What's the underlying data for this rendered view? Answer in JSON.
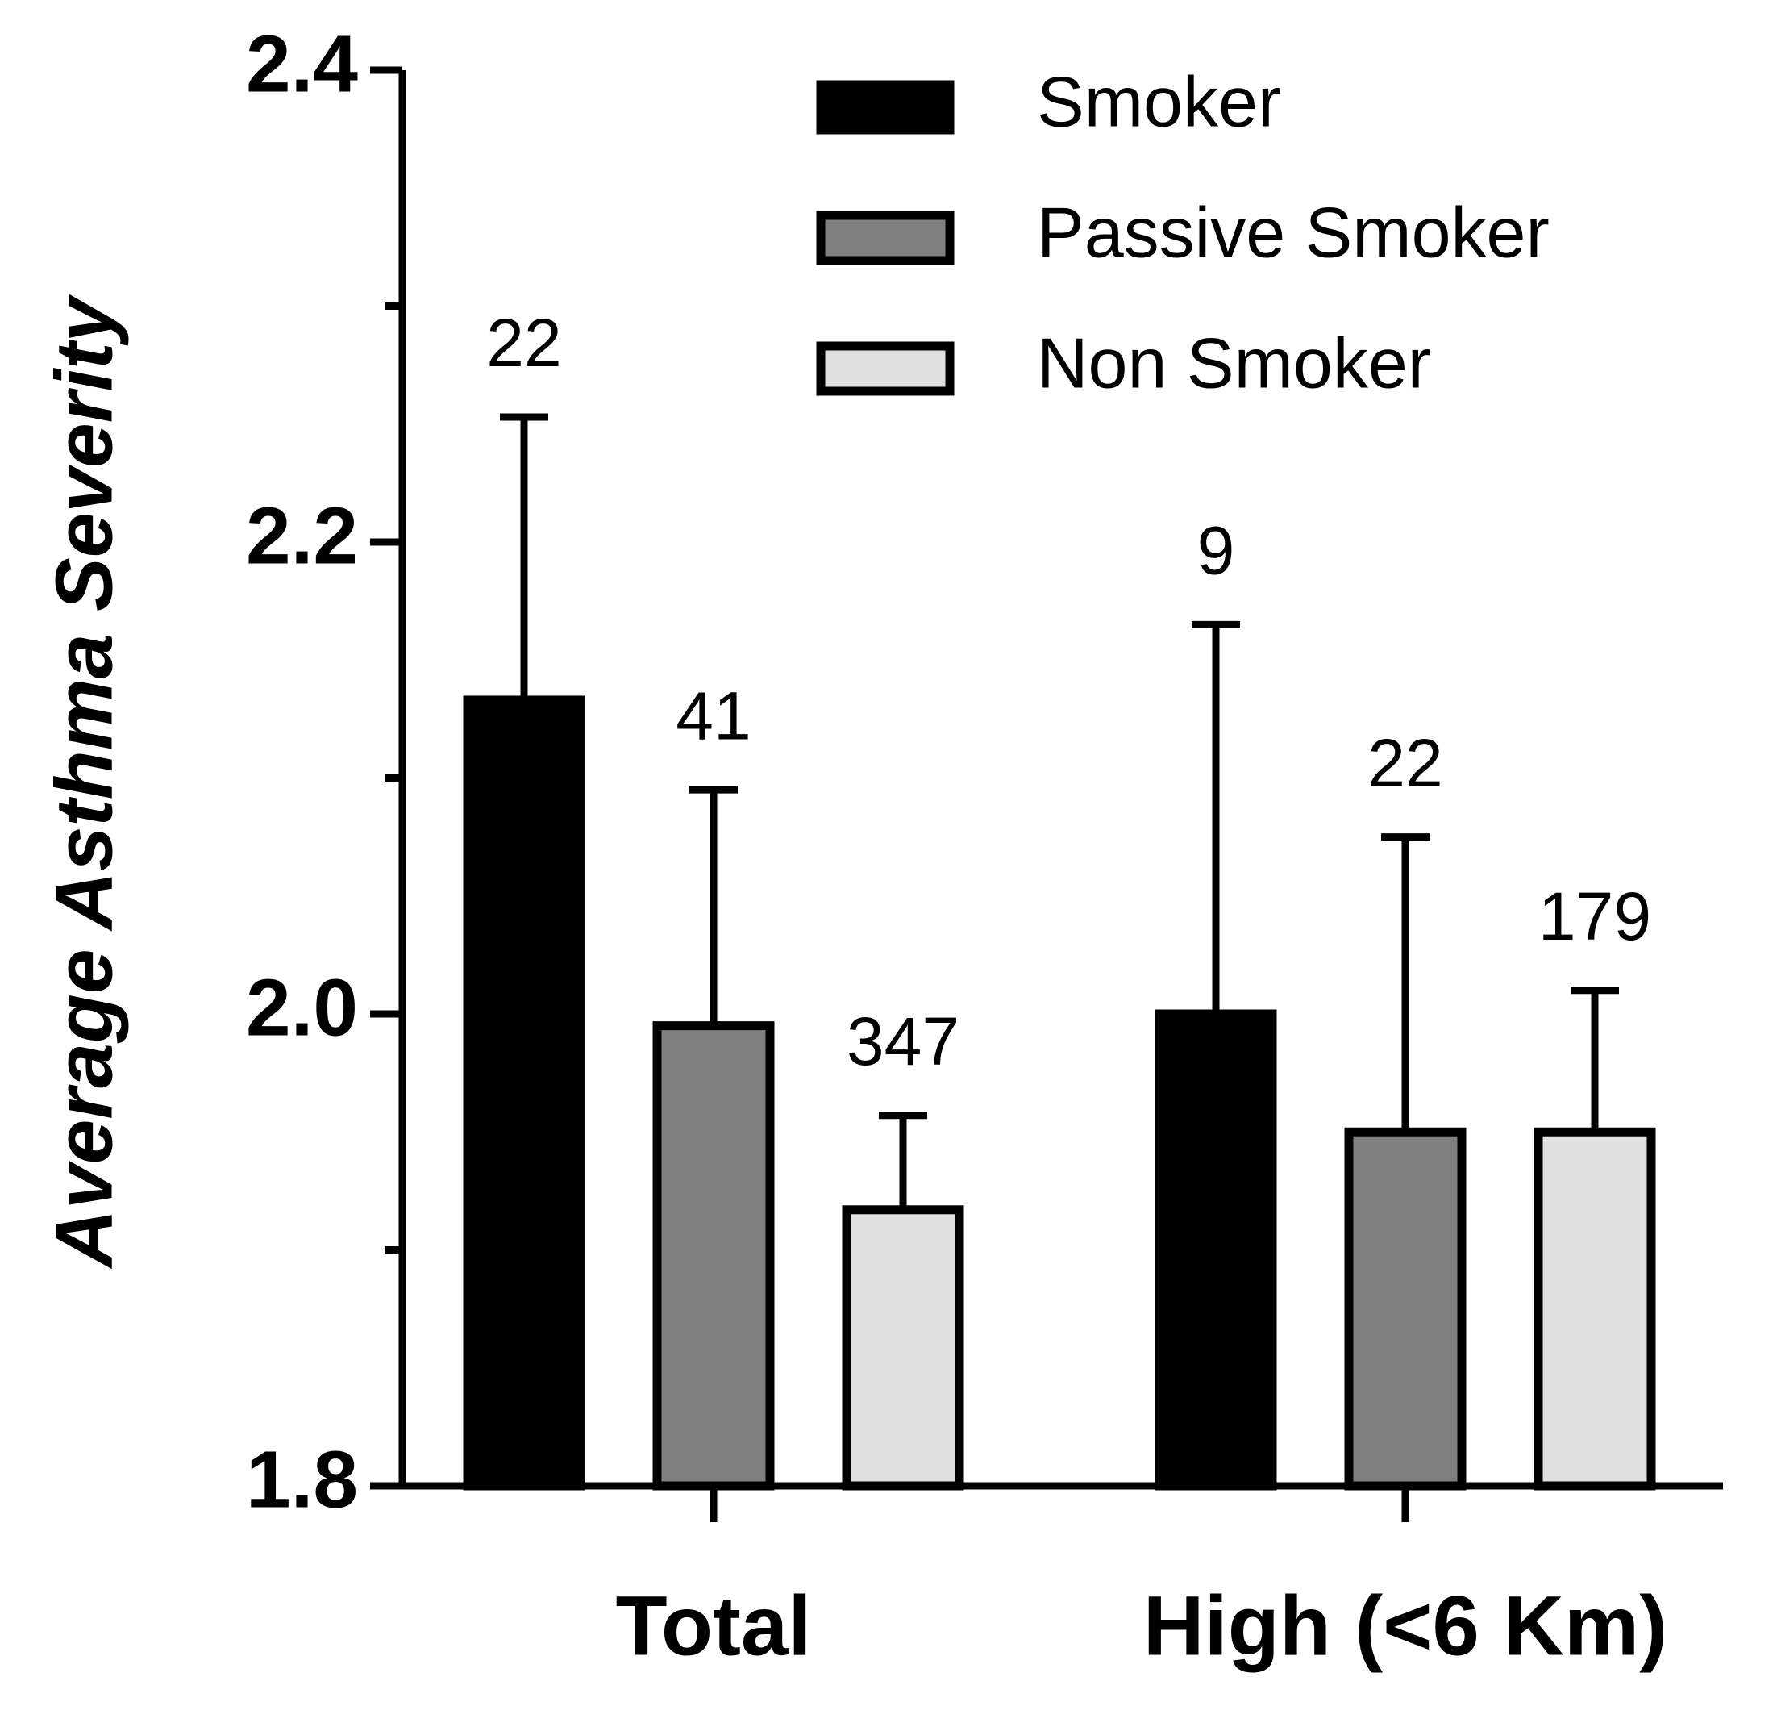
{
  "chart_data": {
    "type": "bar",
    "ylabel": "Average Asthma Severity",
    "categories": [
      "Total",
      "High (<6 Km)"
    ],
    "series": [
      {
        "name": "Smoker",
        "color": "#000000",
        "values": [
          2.133,
          2.0
        ],
        "errors": [
          0.12,
          0.165
        ],
        "n": [
          22,
          9
        ]
      },
      {
        "name": "Passive Smoker",
        "color": "#808080",
        "values": [
          1.995,
          1.95
        ],
        "errors": [
          0.1,
          0.125
        ],
        "n": [
          41,
          22
        ]
      },
      {
        "name": "Non Smoker",
        "color": "#e0e0e0",
        "values": [
          1.917,
          1.95
        ],
        "errors": [
          0.04,
          0.06
        ],
        "n": [
          347,
          179
        ]
      }
    ],
    "ylim": [
      1.8,
      2.4
    ],
    "yticks": [
      1.8,
      {
        "value": 2,
        "label": "2.0"
      },
      2.2,
      2.4
    ],
    "yminorticks": [
      1.9,
      2.1,
      2.3
    ],
    "legend": "top-right"
  }
}
